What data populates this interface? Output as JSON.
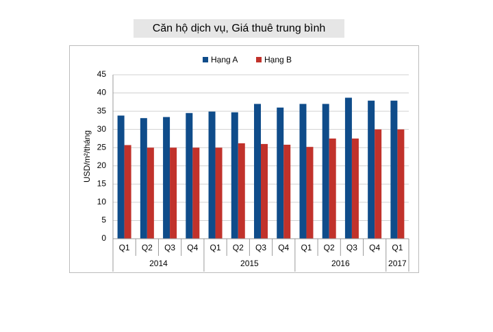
{
  "chart_data": {
    "type": "bar",
    "title": "Căn hộ dịch vụ, Giá thuê trung bình",
    "y_label": "USD/m²/tháng",
    "groups": [
      {
        "label": "2014",
        "categories": [
          "Q1",
          "Q2",
          "Q3",
          "Q4"
        ]
      },
      {
        "label": "2015",
        "categories": [
          "Q1",
          "Q2",
          "Q3",
          "Q4"
        ]
      },
      {
        "label": "2016",
        "categories": [
          "Q1",
          "Q2",
          "Q3",
          "Q4"
        ]
      },
      {
        "label": "2017",
        "categories": [
          "Q1"
        ]
      }
    ],
    "series": [
      {
        "name": "Hạng A",
        "color": "#0f4c8a",
        "values": [
          33.8,
          33.1,
          33.4,
          34.5,
          34.9,
          34.7,
          37,
          36,
          37,
          37,
          38.7,
          37.9,
          37.9
        ]
      },
      {
        "name": "Hạng B",
        "color": "#c1322b",
        "values": [
          25.7,
          25,
          25,
          25,
          25,
          26.2,
          26,
          25.8,
          25.2,
          27.5,
          27.5,
          30,
          30
        ]
      }
    ],
    "ylim": [
      0,
      45
    ],
    "yticks": [
      0,
      5,
      10,
      15,
      20,
      25,
      30,
      35,
      40,
      45
    ],
    "grid": true,
    "legend": "top"
  }
}
